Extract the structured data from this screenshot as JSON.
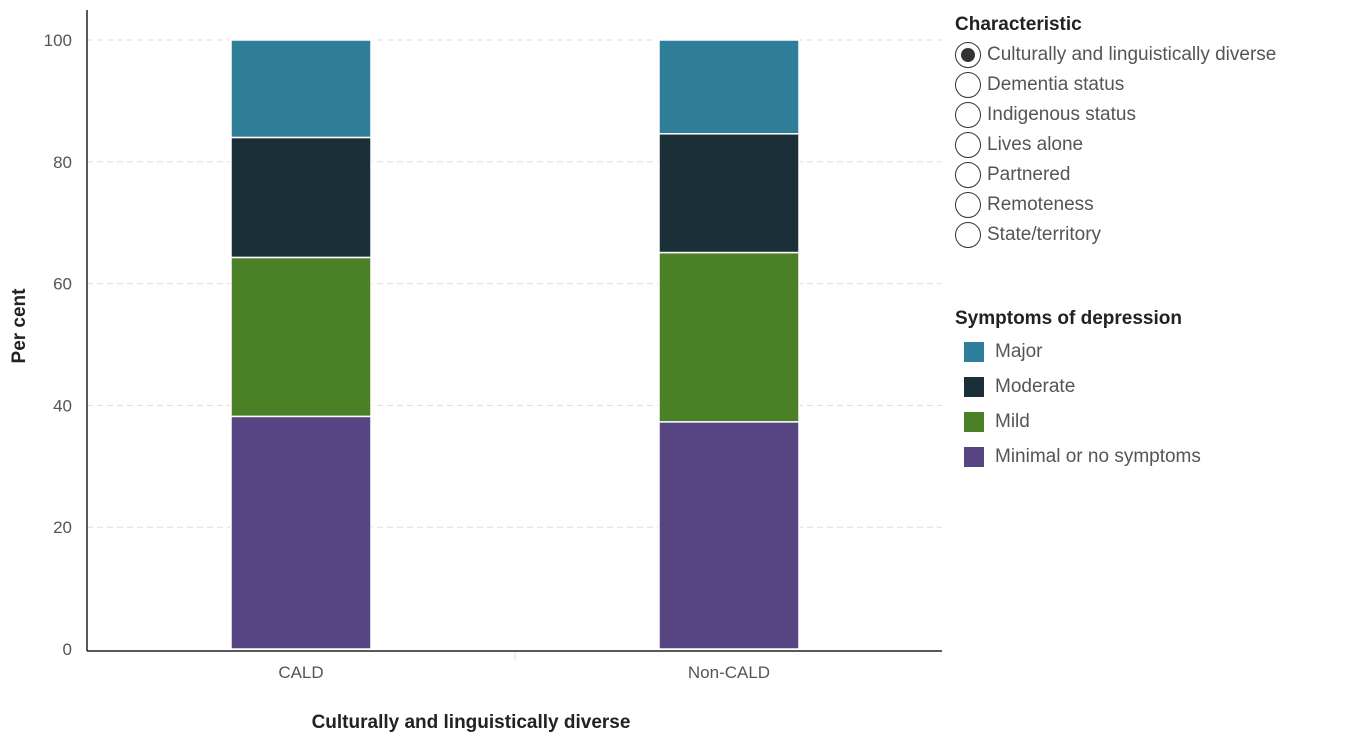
{
  "characteristic": {
    "title": "Characteristic",
    "options": [
      {
        "label": "Culturally and linguistically diverse",
        "selected": true
      },
      {
        "label": "Dementia status",
        "selected": false
      },
      {
        "label": "Indigenous status",
        "selected": false
      },
      {
        "label": "Lives alone",
        "selected": false
      },
      {
        "label": "Partnered",
        "selected": false
      },
      {
        "label": "Remoteness",
        "selected": false
      },
      {
        "label": "State/territory",
        "selected": false
      }
    ]
  },
  "legend": {
    "title": "Symptoms of depression",
    "items": [
      {
        "label": "Major",
        "color": "#2e7d99"
      },
      {
        "label": "Moderate",
        "color": "#1b2f38"
      },
      {
        "label": "Mild",
        "color": "#4b8126"
      },
      {
        "label": "Minimal or no symptoms",
        "color": "#574483"
      }
    ]
  },
  "chart_data": {
    "type": "bar",
    "stacked": true,
    "categories": [
      "CALD",
      "Non-CALD"
    ],
    "series": [
      {
        "name": "Minimal or no symptoms",
        "values": [
          38.2,
          37.3
        ],
        "color": "#574483"
      },
      {
        "name": "Mild",
        "values": [
          26.1,
          27.8
        ],
        "color": "#4b8126"
      },
      {
        "name": "Moderate",
        "values": [
          19.7,
          19.5
        ],
        "color": "#1b2f38"
      },
      {
        "name": "Major",
        "values": [
          16.0,
          15.4
        ],
        "color": "#2e7d99"
      }
    ],
    "xlabel": "Culturally and linguistically diverse",
    "ylabel": "Per cent",
    "ylim": [
      0,
      100
    ],
    "yticks": [
      0,
      20,
      40,
      60,
      80,
      100
    ],
    "grid": true,
    "legend_position": "right"
  }
}
